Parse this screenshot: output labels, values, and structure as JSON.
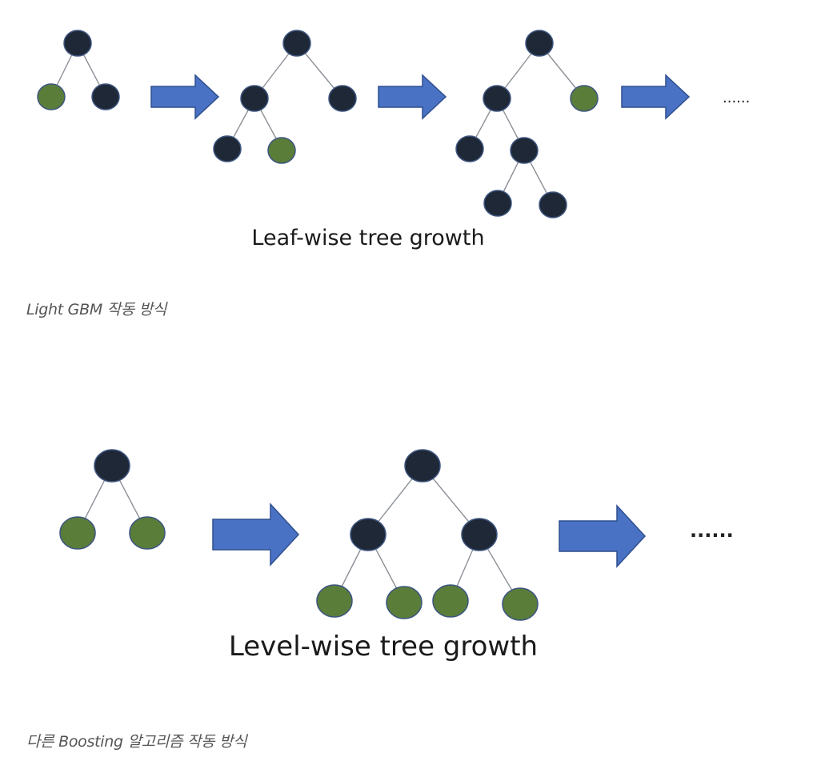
{
  "leaf_wise": {
    "title": "Leaf-wise tree growth",
    "caption": "Light GBM 작동 방식",
    "ellipsis": "......"
  },
  "level_wise": {
    "title": "Level-wise tree growth",
    "caption": "다른 Boosting 알고리즘 작동 방식",
    "ellipsis": "......"
  },
  "colors": {
    "dark_node": "#1f2837",
    "green_node": "#5a7d3a",
    "arrow": "#4a72c4",
    "edge": "#8c9097"
  }
}
